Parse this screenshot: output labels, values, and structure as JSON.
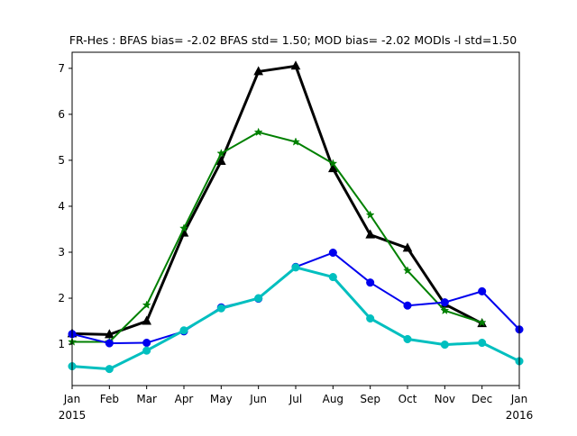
{
  "chart_data": {
    "type": "line",
    "title": "FR-Hes   : BFAS bias= -2.02 BFAS std= 1.50; MOD bias= -2.02 MODls -l std=1.50",
    "xlabel": "",
    "ylabel": "",
    "xlim": [
      0,
      12
    ],
    "ylim": [
      0.1,
      7.35
    ],
    "grid": false,
    "x_ticks": [
      {
        "x": 0,
        "label": "Jan",
        "sublabel": "2015"
      },
      {
        "x": 1,
        "label": "Feb",
        "sublabel": ""
      },
      {
        "x": 2,
        "label": "Mar",
        "sublabel": ""
      },
      {
        "x": 3,
        "label": "Apr",
        "sublabel": ""
      },
      {
        "x": 4,
        "label": "May",
        "sublabel": ""
      },
      {
        "x": 5,
        "label": "Jun",
        "sublabel": ""
      },
      {
        "x": 6,
        "label": "Jul",
        "sublabel": ""
      },
      {
        "x": 7,
        "label": "Aug",
        "sublabel": ""
      },
      {
        "x": 8,
        "label": "Sep",
        "sublabel": ""
      },
      {
        "x": 9,
        "label": "Oct",
        "sublabel": ""
      },
      {
        "x": 10,
        "label": "Nov",
        "sublabel": ""
      },
      {
        "x": 11,
        "label": "Dec",
        "sublabel": ""
      },
      {
        "x": 12,
        "label": "Jan",
        "sublabel": "2016"
      }
    ],
    "y_ticks": [
      1,
      2,
      3,
      4,
      5,
      6,
      7
    ],
    "series": [
      {
        "color": "#000000",
        "marker": "triangle",
        "width": 3,
        "x": [
          0,
          1,
          2,
          3,
          4,
          5,
          6,
          7,
          8,
          9,
          10,
          11
        ],
        "values": [
          1.23,
          1.21,
          1.5,
          3.42,
          4.98,
          6.93,
          7.05,
          4.82,
          3.38,
          3.09,
          1.87,
          1.45
        ]
      },
      {
        "color": "#008000",
        "marker": "star",
        "width": 2,
        "x": [
          0,
          1,
          2,
          3,
          4,
          5,
          6,
          7,
          8,
          9,
          10,
          11
        ],
        "values": [
          1.05,
          1.05,
          1.85,
          3.52,
          5.15,
          5.61,
          5.4,
          4.93,
          3.81,
          2.6,
          1.73,
          1.47
        ]
      },
      {
        "color": "#0000ee",
        "marker": "circle",
        "width": 2,
        "x": [
          0,
          1,
          2,
          3,
          4,
          5,
          6,
          7,
          8,
          9,
          10,
          11,
          12
        ],
        "values": [
          1.22,
          1.02,
          1.03,
          1.28,
          1.8,
          1.99,
          2.68,
          2.99,
          2.34,
          1.84,
          1.91,
          2.15,
          1.32
        ]
      },
      {
        "color": "#00bfbf",
        "marker": "circle",
        "width": 3,
        "x": [
          0,
          1,
          2,
          3,
          4,
          5,
          6,
          7,
          8,
          9,
          10,
          11,
          12
        ],
        "values": [
          0.52,
          0.46,
          0.86,
          1.3,
          1.78,
          2.0,
          2.67,
          2.46,
          1.56,
          1.11,
          0.99,
          1.03,
          0.63
        ]
      }
    ]
  }
}
